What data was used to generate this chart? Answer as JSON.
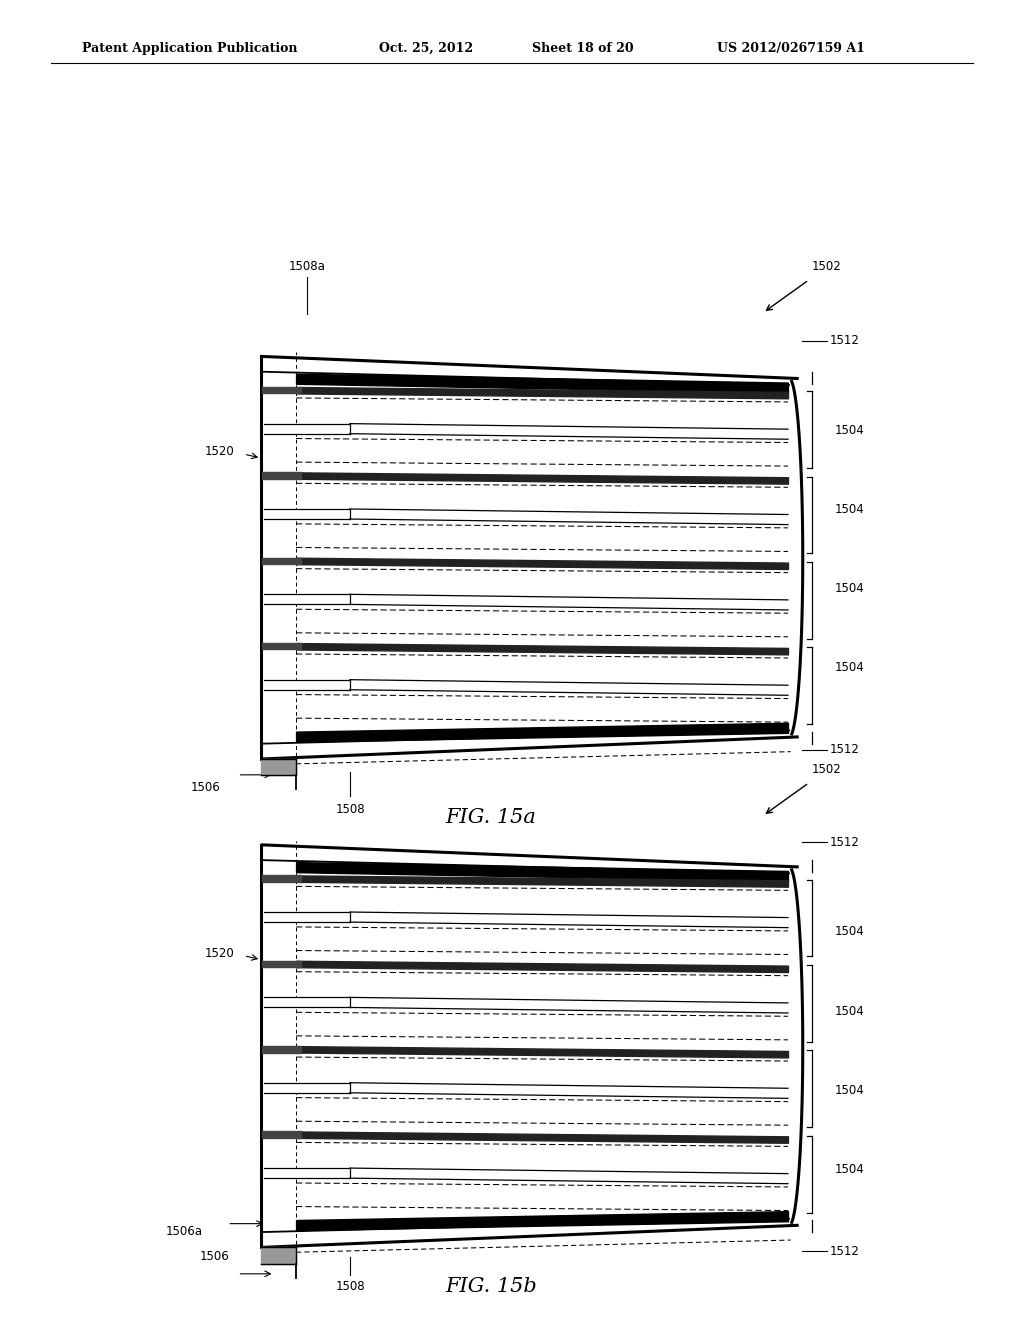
{
  "bg_color": "#ffffff",
  "header_text": "Patent Application Publication",
  "header_date": "Oct. 25, 2012",
  "header_sheet": "Sheet 18 of 20",
  "header_patent": "US 2012/0267159 A1",
  "fig1_title": "FIG. 15a",
  "fig2_title": "FIG. 15b"
}
